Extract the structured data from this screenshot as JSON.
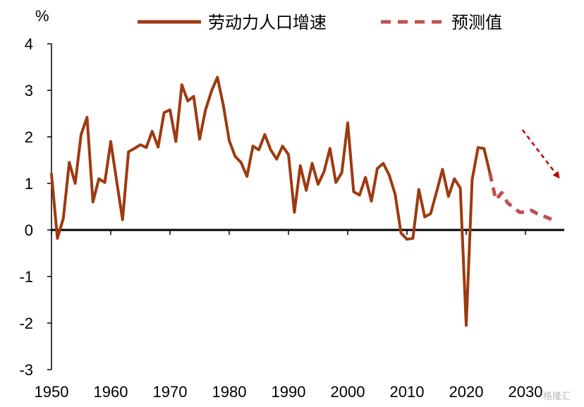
{
  "chart_data": {
    "type": "line",
    "title": "",
    "xlabel": "",
    "ylabel": "%",
    "xlim": [
      1950,
      2035
    ],
    "ylim": [
      -3,
      4
    ],
    "x_ticks": [
      1950,
      1960,
      1970,
      1980,
      1990,
      2000,
      2010,
      2020,
      2030
    ],
    "y_ticks": [
      4,
      3,
      2,
      1,
      0,
      -1,
      -2,
      -3
    ],
    "grid": false,
    "legend": "top",
    "series": [
      {
        "name": "劳动力人口增速",
        "style": "solid",
        "color": "#9e3a10",
        "x": [
          1950,
          1951,
          1952,
          1953,
          1954,
          1955,
          1956,
          1957,
          1958,
          1959,
          1960,
          1961,
          1962,
          1963,
          1964,
          1965,
          1966,
          1967,
          1968,
          1969,
          1970,
          1971,
          1972,
          1973,
          1974,
          1975,
          1976,
          1977,
          1978,
          1979,
          1980,
          1981,
          1982,
          1983,
          1984,
          1985,
          1986,
          1987,
          1988,
          1989,
          1990,
          1991,
          1992,
          1993,
          1994,
          1995,
          1996,
          1997,
          1998,
          1999,
          2000,
          2001,
          2002,
          2003,
          2004,
          2005,
          2006,
          2007,
          2008,
          2009,
          2010,
          2011,
          2012,
          2013,
          2014,
          2015,
          2016,
          2017,
          2018,
          2019,
          2020,
          2021,
          2022,
          2023,
          2024
        ],
        "y": [
          1.2,
          -0.18,
          0.25,
          1.45,
          1.0,
          2.05,
          2.42,
          0.6,
          1.1,
          1.02,
          1.9,
          1.05,
          0.22,
          1.68,
          1.75,
          1.83,
          1.77,
          2.12,
          1.78,
          2.52,
          2.58,
          1.9,
          3.12,
          2.77,
          2.87,
          1.95,
          2.58,
          2.98,
          3.28,
          2.68,
          1.92,
          1.58,
          1.45,
          1.15,
          1.8,
          1.72,
          2.05,
          1.72,
          1.52,
          1.8,
          1.62,
          0.38,
          1.38,
          0.85,
          1.43,
          0.98,
          1.25,
          1.75,
          1.02,
          1.23,
          2.3,
          0.82,
          0.75,
          1.13,
          0.62,
          1.32,
          1.43,
          1.18,
          0.77,
          -0.07,
          -0.2,
          -0.18,
          0.87,
          0.28,
          0.35,
          0.82,
          1.3,
          0.72,
          1.1,
          0.9,
          -2.05,
          1.08,
          1.77,
          1.75,
          1.22
        ]
      },
      {
        "name": "预测值",
        "style": "dashed",
        "color": "#c0504d",
        "x": [
          2024,
          2025,
          2026,
          2027,
          2028,
          2029,
          2030,
          2031,
          2032,
          2033,
          2034,
          2035
        ],
        "y": [
          1.22,
          0.65,
          0.8,
          0.58,
          0.48,
          0.38,
          0.38,
          0.42,
          0.35,
          0.3,
          0.25,
          0.18
        ]
      }
    ],
    "annotations": [
      {
        "type": "arrow",
        "color": "#c00000",
        "style": "dashed",
        "from": [
          2029.5,
          2.15
        ],
        "to": [
          2035.5,
          1.15
        ]
      }
    ]
  },
  "watermark": "格隆汇"
}
